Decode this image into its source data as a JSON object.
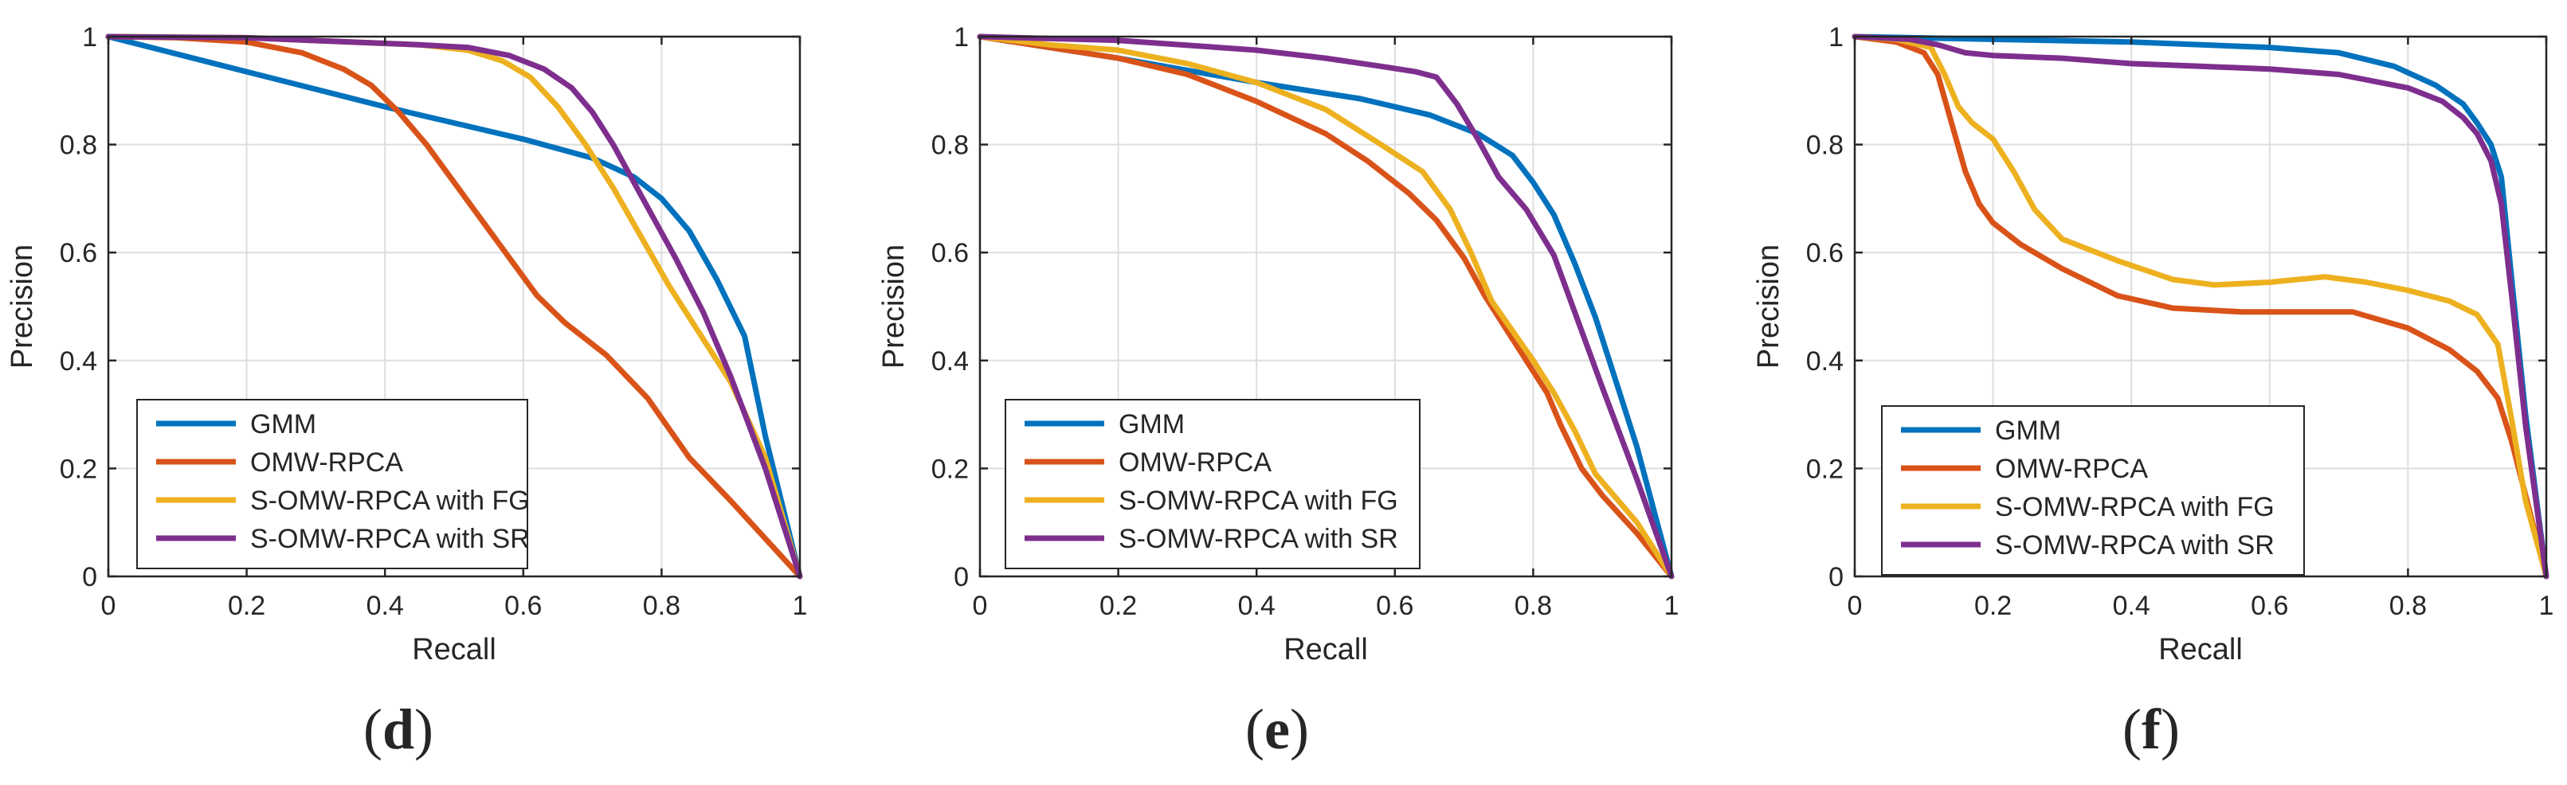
{
  "colors": {
    "GMM": "#0072BD",
    "OMW-RPCA": "#D95319",
    "S-OMW-RPCA with FG": "#EDB120",
    "S-OMW-RPCA with SR": "#7E2F8E"
  },
  "chart_data": [
    {
      "type": "line",
      "panel_label": "d",
      "xlabel": "Recall",
      "ylabel": "Precision",
      "xlim": [
        0,
        1
      ],
      "ylim": [
        0,
        1
      ],
      "xticks": [
        "0",
        "0.2",
        "0.4",
        "0.6",
        "0.8",
        "1"
      ],
      "yticks": [
        "0",
        "0.2",
        "0.4",
        "0.6",
        "0.8",
        "1"
      ],
      "grid": true,
      "legend_position": "bottom-left",
      "series": [
        {
          "name": "GMM",
          "x": [
            0,
            0.2,
            0.4,
            0.6,
            0.7,
            0.76,
            0.8,
            0.84,
            0.88,
            0.92,
            0.95,
            1
          ],
          "y": [
            1,
            0.935,
            0.87,
            0.81,
            0.775,
            0.74,
            0.7,
            0.64,
            0.55,
            0.445,
            0.26,
            0
          ]
        },
        {
          "name": "OMW-RPCA",
          "x": [
            0,
            0.1,
            0.2,
            0.28,
            0.34,
            0.38,
            0.42,
            0.46,
            0.5,
            0.54,
            0.58,
            0.62,
            0.66,
            0.72,
            0.78,
            0.84,
            0.9,
            0.95,
            1
          ],
          "y": [
            1,
            0.998,
            0.99,
            0.97,
            0.94,
            0.91,
            0.86,
            0.8,
            0.73,
            0.66,
            0.59,
            0.52,
            0.47,
            0.41,
            0.33,
            0.22,
            0.14,
            0.07,
            0
          ]
        },
        {
          "name": "S-OMW-RPCA with FG",
          "x": [
            0,
            0.2,
            0.35,
            0.45,
            0.52,
            0.57,
            0.61,
            0.65,
            0.69,
            0.73,
            0.77,
            0.81,
            0.85,
            0.9,
            0.95,
            1
          ],
          "y": [
            1,
            0.998,
            0.99,
            0.985,
            0.975,
            0.955,
            0.925,
            0.87,
            0.8,
            0.72,
            0.63,
            0.54,
            0.46,
            0.36,
            0.22,
            0
          ]
        },
        {
          "name": "S-OMW-RPCA with SR",
          "x": [
            0,
            0.2,
            0.35,
            0.45,
            0.52,
            0.58,
            0.63,
            0.67,
            0.7,
            0.73,
            0.76,
            0.79,
            0.82,
            0.86,
            0.9,
            0.95,
            1
          ],
          "y": [
            1,
            0.998,
            0.99,
            0.985,
            0.98,
            0.965,
            0.94,
            0.905,
            0.86,
            0.8,
            0.73,
            0.66,
            0.59,
            0.49,
            0.37,
            0.2,
            0
          ]
        }
      ]
    },
    {
      "type": "line",
      "panel_label": "e",
      "xlabel": "Recall",
      "ylabel": "Precision",
      "xlim": [
        0,
        1
      ],
      "ylim": [
        0,
        1
      ],
      "xticks": [
        "0",
        "0.2",
        "0.4",
        "0.6",
        "0.8",
        "1"
      ],
      "yticks": [
        "0",
        "0.2",
        "0.4",
        "0.6",
        "0.8",
        "1"
      ],
      "grid": true,
      "legend_position": "bottom-left",
      "series": [
        {
          "name": "GMM",
          "x": [
            0,
            0.2,
            0.4,
            0.55,
            0.65,
            0.72,
            0.77,
            0.8,
            0.83,
            0.86,
            0.89,
            0.92,
            0.95,
            1
          ],
          "y": [
            1,
            0.96,
            0.915,
            0.885,
            0.855,
            0.82,
            0.78,
            0.73,
            0.67,
            0.58,
            0.48,
            0.36,
            0.24,
            0
          ]
        },
        {
          "name": "OMW-RPCA",
          "x": [
            0,
            0.1,
            0.2,
            0.3,
            0.4,
            0.5,
            0.56,
            0.62,
            0.66,
            0.7,
            0.73,
            0.76,
            0.79,
            0.82,
            0.84,
            0.87,
            0.9,
            0.95,
            1
          ],
          "y": [
            1,
            0.98,
            0.96,
            0.93,
            0.88,
            0.82,
            0.77,
            0.71,
            0.66,
            0.59,
            0.52,
            0.46,
            0.4,
            0.34,
            0.28,
            0.2,
            0.15,
            0.08,
            0
          ]
        },
        {
          "name": "S-OMW-RPCA with FG",
          "x": [
            0,
            0.1,
            0.2,
            0.3,
            0.4,
            0.5,
            0.58,
            0.64,
            0.68,
            0.71,
            0.74,
            0.77,
            0.8,
            0.83,
            0.86,
            0.89,
            0.95,
            1
          ],
          "y": [
            1,
            0.985,
            0.975,
            0.95,
            0.915,
            0.865,
            0.8,
            0.75,
            0.68,
            0.6,
            0.51,
            0.455,
            0.4,
            0.34,
            0.27,
            0.19,
            0.1,
            0
          ]
        },
        {
          "name": "S-OMW-RPCA with SR",
          "x": [
            0,
            0.2,
            0.4,
            0.5,
            0.58,
            0.63,
            0.66,
            0.69,
            0.72,
            0.75,
            0.79,
            0.83,
            0.86,
            0.9,
            0.95,
            1
          ],
          "y": [
            1,
            0.993,
            0.975,
            0.96,
            0.945,
            0.935,
            0.925,
            0.875,
            0.81,
            0.74,
            0.68,
            0.595,
            0.49,
            0.35,
            0.18,
            0
          ]
        }
      ]
    },
    {
      "type": "line",
      "panel_label": "f",
      "xlabel": "Recall",
      "ylabel": "Precision",
      "xlim": [
        0,
        1
      ],
      "ylim": [
        0,
        1
      ],
      "xticks": [
        "0",
        "0.2",
        "0.4",
        "0.6",
        "0.8",
        "1"
      ],
      "yticks": [
        "0",
        "0.2",
        "0.4",
        "0.6",
        "0.8",
        "1"
      ],
      "grid": true,
      "legend_position": "bottom-left",
      "series": [
        {
          "name": "GMM",
          "x": [
            0,
            0.2,
            0.4,
            0.6,
            0.7,
            0.78,
            0.84,
            0.88,
            0.9,
            0.92,
            0.935,
            0.95,
            0.97,
            1
          ],
          "y": [
            1,
            0.995,
            0.99,
            0.98,
            0.97,
            0.945,
            0.91,
            0.875,
            0.84,
            0.8,
            0.74,
            0.55,
            0.3,
            0
          ]
        },
        {
          "name": "OMW-RPCA",
          "x": [
            0,
            0.06,
            0.1,
            0.12,
            0.14,
            0.16,
            0.18,
            0.2,
            0.24,
            0.3,
            0.38,
            0.46,
            0.56,
            0.66,
            0.72,
            0.8,
            0.86,
            0.9,
            0.93,
            0.95,
            0.97,
            1
          ],
          "y": [
            1,
            0.99,
            0.97,
            0.93,
            0.84,
            0.75,
            0.69,
            0.655,
            0.615,
            0.57,
            0.52,
            0.497,
            0.49,
            0.49,
            0.49,
            0.46,
            0.42,
            0.38,
            0.33,
            0.25,
            0.15,
            0
          ]
        },
        {
          "name": "S-OMW-RPCA with FG",
          "x": [
            0,
            0.06,
            0.11,
            0.13,
            0.15,
            0.17,
            0.2,
            0.23,
            0.26,
            0.3,
            0.38,
            0.46,
            0.52,
            0.6,
            0.68,
            0.74,
            0.8,
            0.86,
            0.9,
            0.93,
            0.95,
            0.97,
            1
          ],
          "y": [
            1,
            0.995,
            0.98,
            0.93,
            0.87,
            0.84,
            0.81,
            0.75,
            0.68,
            0.625,
            0.585,
            0.55,
            0.54,
            0.545,
            0.555,
            0.545,
            0.53,
            0.51,
            0.485,
            0.43,
            0.29,
            0.14,
            0
          ]
        },
        {
          "name": "S-OMW-RPCA with SR",
          "x": [
            0,
            0.08,
            0.12,
            0.16,
            0.2,
            0.3,
            0.4,
            0.5,
            0.6,
            0.7,
            0.8,
            0.85,
            0.88,
            0.9,
            0.92,
            0.935,
            0.95,
            0.97,
            1
          ],
          "y": [
            1,
            0.995,
            0.985,
            0.97,
            0.965,
            0.96,
            0.95,
            0.945,
            0.94,
            0.93,
            0.905,
            0.88,
            0.85,
            0.82,
            0.77,
            0.69,
            0.52,
            0.28,
            0
          ]
        }
      ]
    }
  ]
}
